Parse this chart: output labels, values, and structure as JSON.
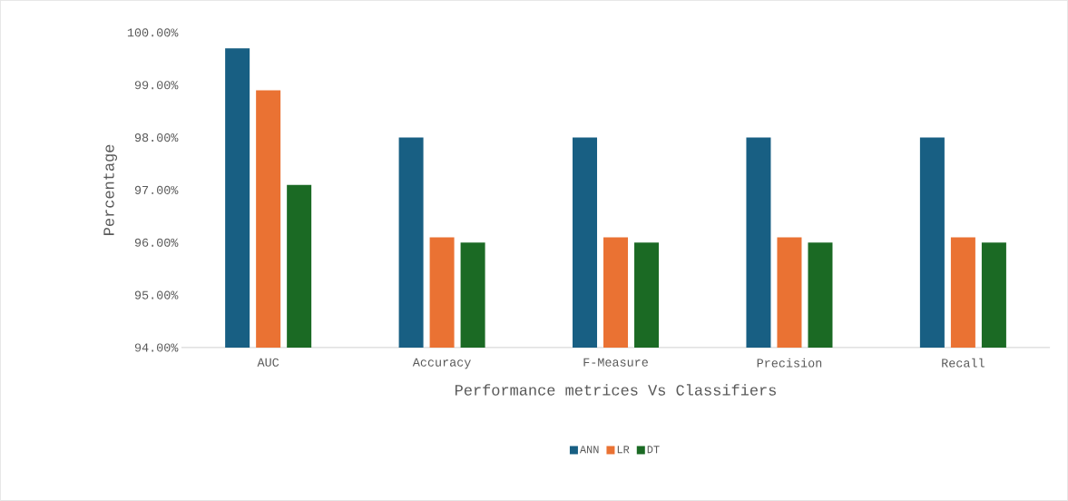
{
  "chart_data": {
    "type": "bar",
    "xlabel": "Performance metrices Vs Classifiers",
    "ylabel": "Percentage",
    "categories": [
      "AUC",
      "Accuracy",
      "F-Measure",
      "Precision",
      "Recall"
    ],
    "series": [
      {
        "name": "ANN",
        "color": "#185f83",
        "values": [
          99.7,
          98.0,
          98.0,
          98.0,
          98.0
        ]
      },
      {
        "name": "LR",
        "color": "#ea7233",
        "values": [
          98.9,
          96.1,
          96.1,
          96.1,
          96.1
        ]
      },
      {
        "name": "DT",
        "color": "#1b6a24",
        "values": [
          97.1,
          96.0,
          96.0,
          96.0,
          96.0
        ]
      }
    ],
    "ylim": [
      94,
      100
    ],
    "yticks": [
      {
        "value": 94,
        "label": "94.00%"
      },
      {
        "value": 95,
        "label": "95.00%"
      },
      {
        "value": 96,
        "label": "96.00%"
      },
      {
        "value": 97,
        "label": "97.00%"
      },
      {
        "value": 98,
        "label": "98.00%"
      },
      {
        "value": 99,
        "label": "99.00%"
      },
      {
        "value": 100,
        "label": "100.00%"
      }
    ],
    "legend": "bottom"
  }
}
